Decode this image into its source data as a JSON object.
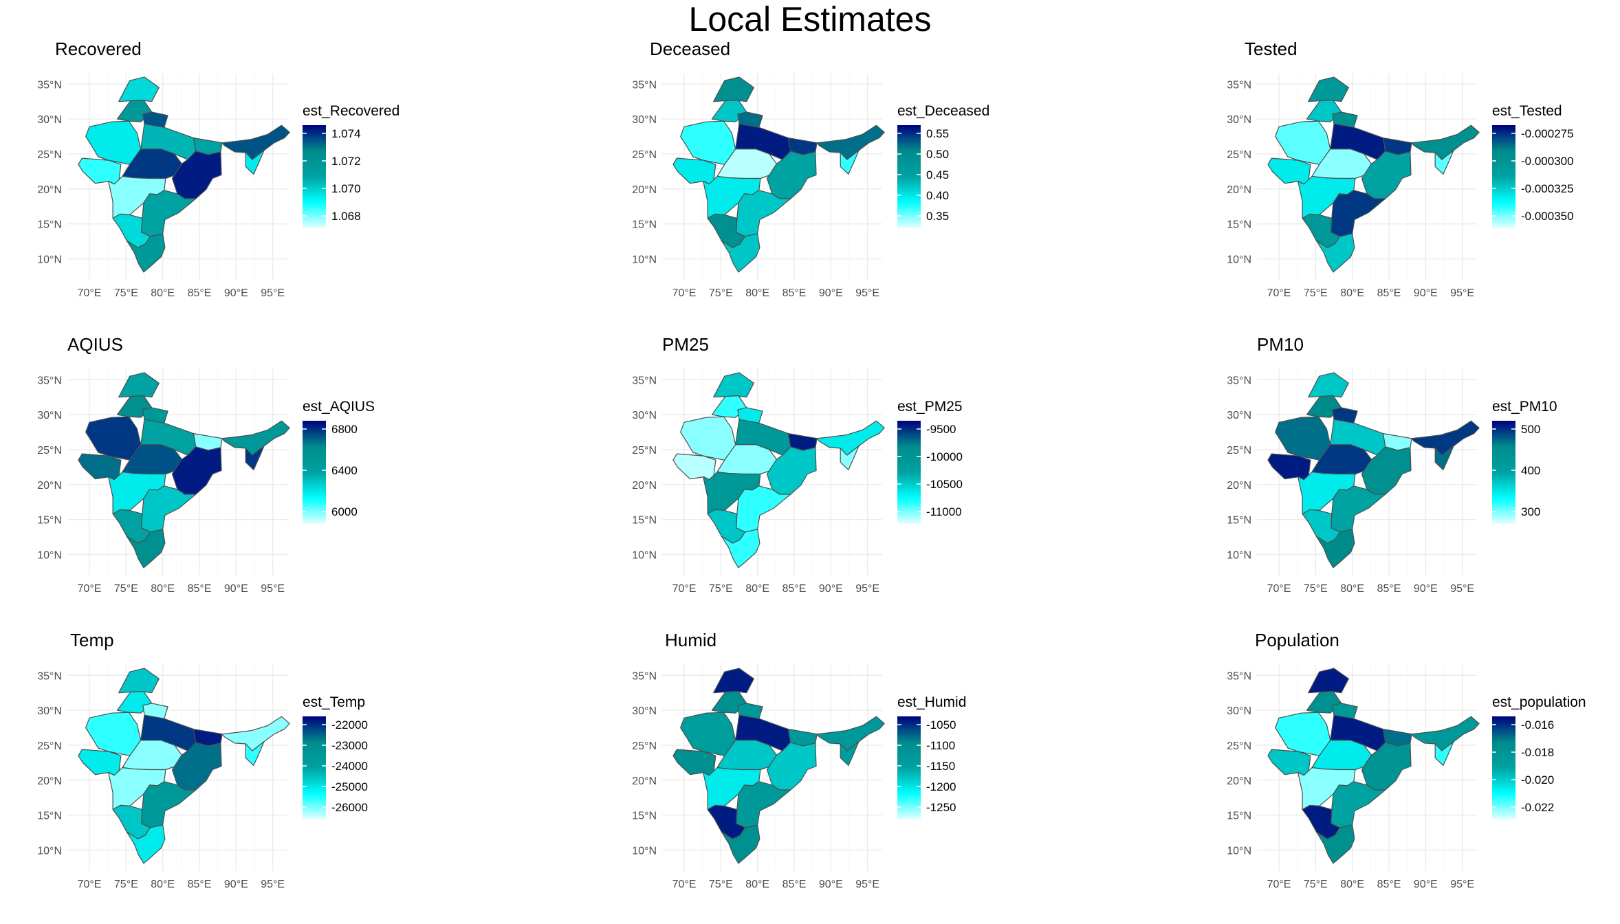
{
  "title": "Local Estimates",
  "colors": {
    "grid": "#ebebeb",
    "border": "#4d4d4d",
    "scale": [
      "#e6ffff",
      "#00ffff",
      "#00a2a2",
      "#008b8b",
      "#000080"
    ]
  },
  "axes": {
    "x_ticks": [
      "70°E",
      "75°E",
      "80°E",
      "85°E",
      "90°E",
      "95°E"
    ],
    "y_ticks": [
      "35°N",
      "30°N",
      "25°N",
      "20°N",
      "15°N",
      "10°N"
    ]
  },
  "panels": [
    {
      "title": "Recovered",
      "legend_title": "est_Recovered",
      "legend_labels": [
        "1.074",
        "1.072",
        "1.070",
        "1.068"
      ],
      "fill_levels": [
        0.35,
        0.6,
        0.85,
        0.3,
        0.2,
        0.45,
        0.5,
        0.9,
        0.95,
        0.1,
        0.5
      ]
    },
    {
      "title": "Deceased",
      "legend_title": "est_Deceased",
      "legend_labels": [
        "0.55",
        "0.50",
        "0.45",
        "0.40",
        "0.35"
      ],
      "fill_levels": [
        0.7,
        0.4,
        0.8,
        0.2,
        0.3,
        0.95,
        0.9,
        0.05,
        0.5,
        0.3,
        0.4
      ]
    },
    {
      "title": "Tested",
      "legend_title": "est_Tested",
      "legend_labels": [
        "-0.000275",
        "-0.000300",
        "-0.000325",
        "-0.000350"
      ],
      "fill_levels": [
        0.6,
        0.4,
        0.7,
        0.15,
        0.3,
        0.95,
        0.9,
        0.1,
        0.5,
        0.3,
        0.9
      ]
    },
    {
      "title": "AQIUS",
      "legend_title": "est_AQIUS",
      "legend_labels": [
        "6800",
        "6400",
        "6000"
      ],
      "fill_levels": [
        0.5,
        0.7,
        0.6,
        0.9,
        0.8,
        0.5,
        0.1,
        0.85,
        0.95,
        0.3,
        0.4
      ]
    },
    {
      "title": "PM25",
      "legend_title": "est_PM25",
      "legend_labels": [
        "-9500",
        "-10000",
        "-10500",
        "-11000"
      ],
      "fill_levels": [
        0.4,
        0.2,
        0.3,
        0.1,
        0.05,
        0.6,
        0.95,
        0.1,
        0.4,
        0.6,
        0.2
      ]
    },
    {
      "title": "PM10",
      "legend_title": "est_PM10",
      "legend_labels": [
        "500",
        "400",
        "300"
      ],
      "fill_levels": [
        0.4,
        0.75,
        0.9,
        0.8,
        0.95,
        0.4,
        0.1,
        0.9,
        0.7,
        0.3,
        0.5
      ]
    },
    {
      "title": "Temp",
      "legend_title": "est_Temp",
      "legend_labels": [
        "-22000",
        "-23000",
        "-24000",
        "-25000",
        "-26000"
      ],
      "fill_levels": [
        0.4,
        0.3,
        0.1,
        0.2,
        0.3,
        0.9,
        0.95,
        0.1,
        0.8,
        0.1,
        0.6
      ]
    },
    {
      "title": "Humid",
      "legend_title": "est_Humid",
      "legend_labels": [
        "-1050",
        "-1100",
        "-1150",
        "-1200",
        "-1250"
      ],
      "fill_levels": [
        0.95,
        0.7,
        0.6,
        0.55,
        0.7,
        0.95,
        0.6,
        0.4,
        0.4,
        0.3,
        0.6
      ]
    },
    {
      "title": "Population",
      "legend_title": "est_population",
      "legend_labels": [
        "-0.016",
        "-0.018",
        "-0.020",
        "-0.022"
      ],
      "fill_levels": [
        0.95,
        0.7,
        0.6,
        0.2,
        0.4,
        0.95,
        0.8,
        0.3,
        0.65,
        0.1,
        0.5
      ]
    }
  ]
}
